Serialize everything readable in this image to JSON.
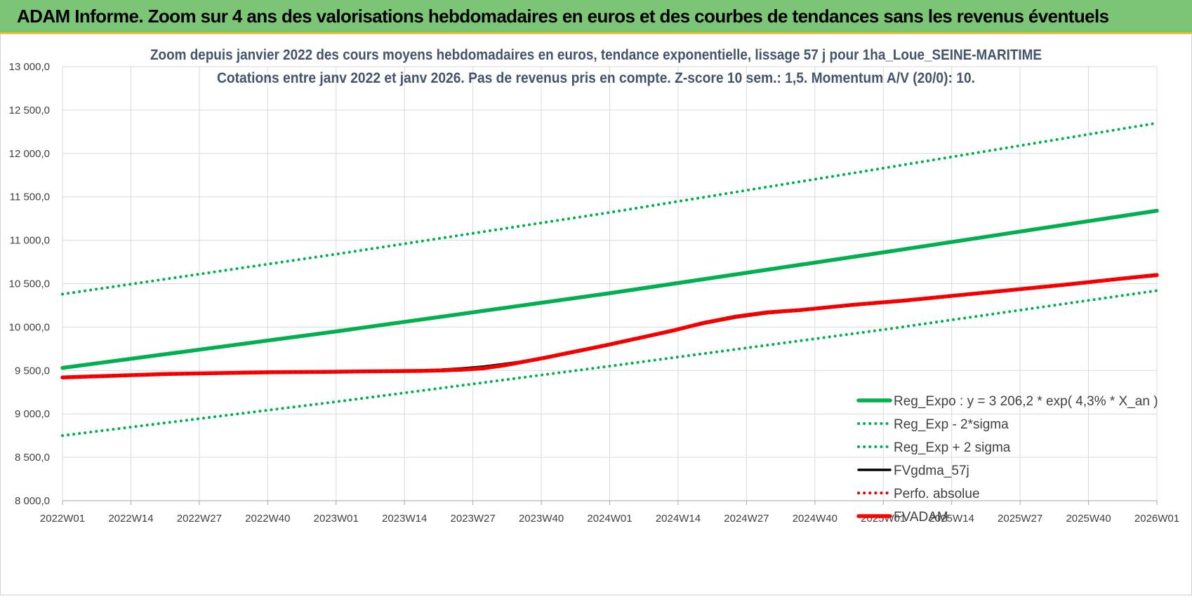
{
  "banner": {
    "title": "ADAM Informe. Zoom sur 4 ans des valorisations hebdomadaires en euros et des courbes de tendances sans les revenus éventuels"
  },
  "chart_data": {
    "type": "line",
    "title_lines": [
      "Zoom depuis janvier 2022 des cours moyens hebdomadaires en euros, tendance exponentielle, lissage 57 j pour 1ha_Loue_SEINE-MARITIME",
      "Cotations entre janv 2022 et janv 2026. Pas de revenus pris en compte. Z-score 10 sem.: 1,5. Momentum A/V (20/0): 10."
    ],
    "ylim": [
      8000,
      13000
    ],
    "y_ticks": [
      8000,
      8500,
      9000,
      9500,
      10000,
      10500,
      11000,
      11500,
      12000,
      12500,
      13000
    ],
    "y_tick_labels": [
      "8 000,0",
      "8 500,0",
      "9 000,0",
      "9 500,0",
      "10 000,0",
      "10 500,0",
      "11 000,0",
      "11 500,0",
      "12 000,0",
      "12 500,0",
      "13 000,0"
    ],
    "x_range": [
      0,
      208
    ],
    "x_ticks": [
      0,
      13,
      26,
      39,
      52,
      65,
      78,
      91,
      104,
      117,
      130,
      143,
      156,
      169,
      182,
      195,
      208
    ],
    "x_tick_labels": [
      "2022W01",
      "2022W14",
      "2022W27",
      "2022W40",
      "2023W01",
      "2023W14",
      "2023W27",
      "2023W40",
      "2024W01",
      "2024W14",
      "2024W27",
      "2024W40",
      "2025W01",
      "2025W14",
      "2025W27",
      "2025W40",
      "2026W01"
    ],
    "grid": true,
    "legend_position": "bottom-right",
    "series": [
      {
        "name": "Reg_Expo : y = 3 206,2 * exp( 4,3% *  X_an )",
        "style": "solid-thick",
        "color": "#00b050",
        "x": [
          0,
          52,
          104,
          156,
          208
        ],
        "values": [
          9530,
          9950,
          10390,
          10860,
          11340
        ]
      },
      {
        "name": "Reg_Exp - 2*sigma",
        "style": "dotted",
        "color": "#00b050",
        "x": [
          0,
          52,
          104,
          156,
          208
        ],
        "values": [
          8750,
          9140,
          9550,
          9970,
          10420
        ]
      },
      {
        "name": "Reg_Exp + 2 sigma",
        "style": "dotted",
        "color": "#00b050",
        "x": [
          0,
          52,
          104,
          156,
          208
        ],
        "values": [
          10380,
          10840,
          11320,
          11830,
          12350
        ]
      },
      {
        "name": "FVgdma_57j",
        "style": "solid",
        "color": "#000000",
        "x": [
          0,
          10,
          20,
          30,
          40,
          50,
          60,
          68,
          72,
          76,
          80,
          84,
          88,
          92,
          96,
          100,
          104,
          110,
          116,
          122,
          128,
          134,
          140,
          150,
          160,
          170,
          180,
          190,
          200,
          208
        ],
        "values": [
          9420,
          9440,
          9460,
          9470,
          9480,
          9485,
          9490,
          9500,
          9510,
          9525,
          9545,
          9575,
          9610,
          9650,
          9700,
          9750,
          9800,
          9880,
          9960,
          10040,
          10110,
          10160,
          10190,
          10250,
          10300,
          10360,
          10420,
          10480,
          10550,
          10590
        ]
      },
      {
        "name": "Perfo. absolue",
        "style": "dotted",
        "color": "#e00000",
        "x": [
          0,
          10,
          20,
          30,
          40,
          50,
          60,
          68,
          72,
          76,
          80,
          84,
          88,
          92,
          96,
          100,
          104,
          110,
          116,
          122,
          128,
          134,
          140,
          150,
          160,
          170,
          180,
          190,
          200,
          208
        ],
        "values": [
          9420,
          9440,
          9460,
          9470,
          9480,
          9485,
          9490,
          9495,
          9500,
          9510,
          9525,
          9560,
          9605,
          9650,
          9700,
          9750,
          9800,
          9880,
          9960,
          10050,
          10120,
          10170,
          10195,
          10255,
          10305,
          10365,
          10425,
          10485,
          10550,
          10600
        ]
      },
      {
        "name": "FVADAM",
        "style": "solid-thick",
        "color": "#ff0000",
        "x": [
          0,
          10,
          20,
          30,
          40,
          50,
          60,
          68,
          72,
          76,
          80,
          84,
          88,
          92,
          96,
          100,
          104,
          110,
          116,
          122,
          128,
          134,
          140,
          150,
          160,
          170,
          180,
          190,
          200,
          208
        ],
        "values": [
          9420,
          9440,
          9460,
          9470,
          9480,
          9485,
          9490,
          9495,
          9500,
          9510,
          9525,
          9560,
          9605,
          9650,
          9700,
          9750,
          9800,
          9880,
          9960,
          10050,
          10120,
          10170,
          10195,
          10255,
          10305,
          10365,
          10425,
          10485,
          10550,
          10600
        ]
      }
    ]
  }
}
